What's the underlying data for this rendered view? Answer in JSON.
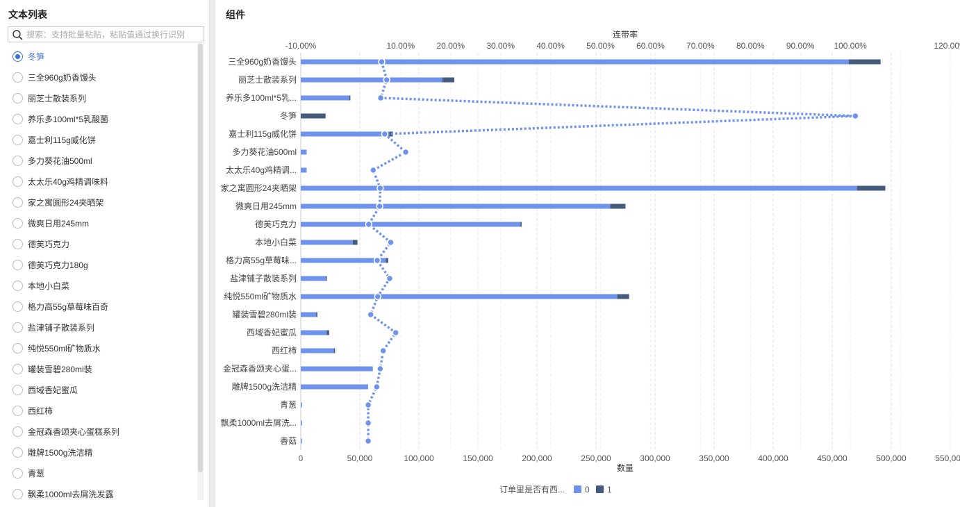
{
  "left_panel": {
    "title": "文本列表",
    "search": {
      "placeholder": "搜索：支持批量粘贴，粘贴值通过换行识别"
    },
    "selected_index": 0,
    "items": [
      "冬笋",
      "三全960g奶香馒头",
      "丽芝士散装系列",
      "养乐多100ml*5乳酸菌",
      "嘉士利115g威化饼",
      "多力葵花油500ml",
      "太太乐40g鸡精调味料",
      "家之寓圆形24夹晒架",
      "微爽日用245mm",
      "德芙巧克力",
      "德芙巧克力180g",
      "本地小白菜",
      "格力高55g草莓味百奇",
      "盐津铺子散装系列",
      "纯悦550ml矿物质水",
      "罐装雪碧280ml装",
      "西域香妃蜜瓜",
      "西红柿",
      "金冠森香颂夹心蛋糕系列",
      "雕牌1500g洗洁精",
      "青葱",
      "飘柔1000ml去屑洗发露"
    ]
  },
  "right_panel": {
    "title": "组件"
  },
  "chart_data": {
    "type": "bar",
    "orientation": "horizontal",
    "stacked": true,
    "categories": [
      "三全960g奶香馒头",
      "丽芝士散装系列",
      "养乐多100ml*5乳...",
      "冬笋",
      "嘉士利115g威化饼",
      "多力葵花油500ml",
      "太太乐40g鸡精调...",
      "家之寓圆形24夹晒架",
      "微爽日用245mm",
      "德芙巧克力",
      "本地小白菜",
      "格力高55g草莓味...",
      "盐津铺子散装系列",
      "纯悦550ml矿物质水",
      "罐装雪碧280ml装",
      "西域香妃蜜瓜",
      "西红柿",
      "金冠森香颂夹心蛋...",
      "雕牌1500g洗洁精",
      "青葱",
      "飘柔1000ml去屑洗...",
      "香菇"
    ],
    "series": [
      {
        "name": "0",
        "color": "#6f93ec",
        "values": [
          464000,
          120000,
          41000,
          0,
          75000,
          5000,
          5000,
          471000,
          262000,
          186000,
          44000,
          72000,
          21000,
          268000,
          13000,
          22000,
          28000,
          61000,
          57000,
          1000,
          1000,
          1000
        ]
      },
      {
        "name": "1",
        "color": "#445b7f",
        "values": [
          27000,
          10000,
          1000,
          21000,
          3000,
          0,
          0,
          24000,
          13000,
          1000,
          4000,
          2000,
          1000,
          10000,
          1000,
          2000,
          1000,
          0,
          0,
          0,
          0,
          0
        ]
      }
    ],
    "line": {
      "name": "连带率",
      "color": "#6f93ec",
      "values": [
        0.062,
        0.072,
        0.06,
        1.01,
        0.068,
        0.11,
        0.045,
        0.059,
        0.058,
        0.036,
        0.08,
        0.053,
        0.078,
        0.054,
        0.04,
        0.09,
        0.065,
        0.059,
        0.052,
        0.035,
        0.035,
        0.035
      ]
    },
    "xlabel": "数量",
    "x2label": "连带率",
    "xlim": [
      0,
      550000
    ],
    "xticks": [
      "0",
      "50,000",
      "100,000",
      "150,000",
      "200,000",
      "250,000",
      "300,000",
      "350,000",
      "400,000",
      "450,000",
      "500,000",
      "550,000"
    ],
    "x2lim": [
      -0.1,
      1.2
    ],
    "x2ticks": [
      "-10.00%",
      "10.00%",
      "20.00%",
      "30.00%",
      "40.00%",
      "50.00%",
      "60.00%",
      "70.00%",
      "80.00%",
      "90.00%",
      "100.00%",
      "120.00%"
    ],
    "legend": {
      "title": "订单里是否有西...",
      "position": "bottom-center"
    },
    "grid": true
  }
}
